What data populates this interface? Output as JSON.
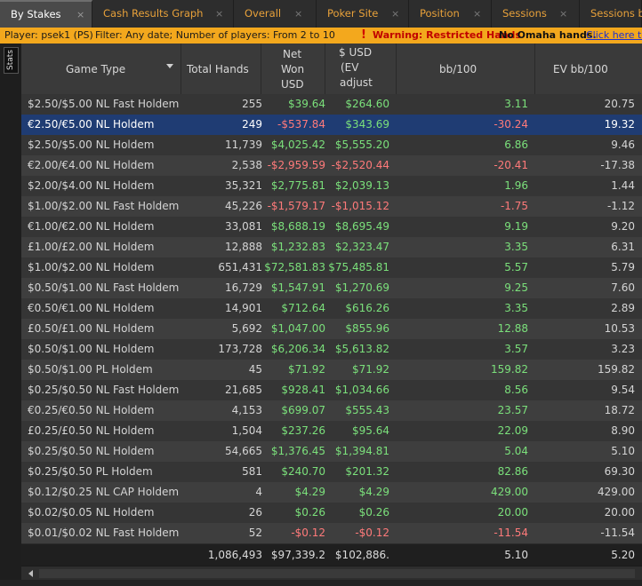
{
  "tabs": [
    {
      "label": "By Stakes",
      "active": true
    },
    {
      "label": "Cash Results Graph"
    },
    {
      "label": "Overall"
    },
    {
      "label": "Poker Site"
    },
    {
      "label": "Position"
    },
    {
      "label": "Sessions"
    },
    {
      "label": "Sessions b"
    }
  ],
  "close_glyph": "×",
  "filter": {
    "player": "Player: psek1 (PS)",
    "filter": "Filter: Any date; Number of players: From 2 to 10",
    "warn_icon": "!",
    "warning": "Warning: Restricted Hands",
    "no_omaha": "No Omaha hands.",
    "link": "Click here to"
  },
  "side": {
    "stats_label": "Stats"
  },
  "columns": {
    "game_type": "Game Type",
    "total_hands": "Total Hands",
    "net_won_1": "Net",
    "net_won_2": "Won",
    "net_won_3": "USD",
    "ev_1": "$ USD",
    "ev_2": "(EV",
    "ev_3": "adjust",
    "bb100": "bb/100",
    "evbb100": "EV bb/100"
  },
  "rows": [
    {
      "game": "$2.50/$5.00 NL Fast Holdem",
      "hands": "255",
      "net": "$39.64",
      "ev": "$264.60",
      "bb": "3.11",
      "evbb": "20.75"
    },
    {
      "game": "€2.50/€5.00 NL Holdem",
      "hands": "249",
      "net": "-$537.84",
      "ev": "$343.69",
      "bb": "-30.24",
      "evbb": "19.32",
      "selected": true
    },
    {
      "game": "$2.50/$5.00 NL Holdem",
      "hands": "11,739",
      "net": "$4,025.42",
      "ev": "$5,555.20",
      "bb": "6.86",
      "evbb": "9.46"
    },
    {
      "game": "€2.00/€4.00 NL Holdem",
      "hands": "2,538",
      "net": "-$2,959.59",
      "ev": "-$2,520.44",
      "bb": "-20.41",
      "evbb": "-17.38"
    },
    {
      "game": "$2.00/$4.00 NL Holdem",
      "hands": "35,321",
      "net": "$2,775.81",
      "ev": "$2,039.13",
      "bb": "1.96",
      "evbb": "1.44"
    },
    {
      "game": "$1.00/$2.00 NL Fast Holdem",
      "hands": "45,226",
      "net": "-$1,579.17",
      "ev": "-$1,015.12",
      "bb": "-1.75",
      "evbb": "-1.12"
    },
    {
      "game": "€1.00/€2.00 NL Holdem",
      "hands": "33,081",
      "net": "$8,688.19",
      "ev": "$8,695.49",
      "bb": "9.19",
      "evbb": "9.20"
    },
    {
      "game": "£1.00/£2.00 NL Holdem",
      "hands": "12,888",
      "net": "$1,232.83",
      "ev": "$2,323.47",
      "bb": "3.35",
      "evbb": "6.31"
    },
    {
      "game": "$1.00/$2.00 NL Holdem",
      "hands": "651,431",
      "net": "$72,581.83",
      "ev": "$75,485.81",
      "bb": "5.57",
      "evbb": "5.79"
    },
    {
      "game": "$0.50/$1.00 NL Fast Holdem",
      "hands": "16,729",
      "net": "$1,547.91",
      "ev": "$1,270.69",
      "bb": "9.25",
      "evbb": "7.60"
    },
    {
      "game": "€0.50/€1.00 NL Holdem",
      "hands": "14,901",
      "net": "$712.64",
      "ev": "$616.26",
      "bb": "3.35",
      "evbb": "2.89"
    },
    {
      "game": "£0.50/£1.00 NL Holdem",
      "hands": "5,692",
      "net": "$1,047.00",
      "ev": "$855.96",
      "bb": "12.88",
      "evbb": "10.53"
    },
    {
      "game": "$0.50/$1.00 NL Holdem",
      "hands": "173,728",
      "net": "$6,206.34",
      "ev": "$5,613.82",
      "bb": "3.57",
      "evbb": "3.23"
    },
    {
      "game": "$0.50/$1.00 PL Holdem",
      "hands": "45",
      "net": "$71.92",
      "ev": "$71.92",
      "bb": "159.82",
      "evbb": "159.82"
    },
    {
      "game": "$0.25/$0.50 NL Fast Holdem",
      "hands": "21,685",
      "net": "$928.41",
      "ev": "$1,034.66",
      "bb": "8.56",
      "evbb": "9.54"
    },
    {
      "game": "€0.25/€0.50 NL Holdem",
      "hands": "4,153",
      "net": "$699.07",
      "ev": "$555.43",
      "bb": "23.57",
      "evbb": "18.72"
    },
    {
      "game": "£0.25/£0.50 NL Holdem",
      "hands": "1,504",
      "net": "$237.26",
      "ev": "$95.64",
      "bb": "22.09",
      "evbb": "8.90"
    },
    {
      "game": "$0.25/$0.50 NL Holdem",
      "hands": "54,665",
      "net": "$1,376.45",
      "ev": "$1,394.81",
      "bb": "5.04",
      "evbb": "5.10"
    },
    {
      "game": "$0.25/$0.50 PL Holdem",
      "hands": "581",
      "net": "$240.70",
      "ev": "$201.32",
      "bb": "82.86",
      "evbb": "69.30"
    },
    {
      "game": "$0.12/$0.25 NL CAP Holdem",
      "hands": "4",
      "net": "$4.29",
      "ev": "$4.29",
      "bb": "429.00",
      "evbb": "429.00"
    },
    {
      "game": "$0.02/$0.05 NL Holdem",
      "hands": "26",
      "net": "$0.26",
      "ev": "$0.26",
      "bb": "20.00",
      "evbb": "20.00"
    },
    {
      "game": "$0.01/$0.02 NL Fast Holdem",
      "hands": "52",
      "net": "-$0.12",
      "ev": "-$0.12",
      "bb": "-11.54",
      "evbb": "-11.54"
    }
  ],
  "totals": {
    "hands": "1,086,493",
    "net": "$97,339.2",
    "ev": "$102,886.",
    "bb": "5.10",
    "evbb": "5.20"
  },
  "colors": {
    "positive": "#7be07b",
    "negative": "#ff7a7a",
    "selected_row": "#1f3c73",
    "tab_text": "#e8a13a",
    "filter_bar": "#f3a81d"
  }
}
